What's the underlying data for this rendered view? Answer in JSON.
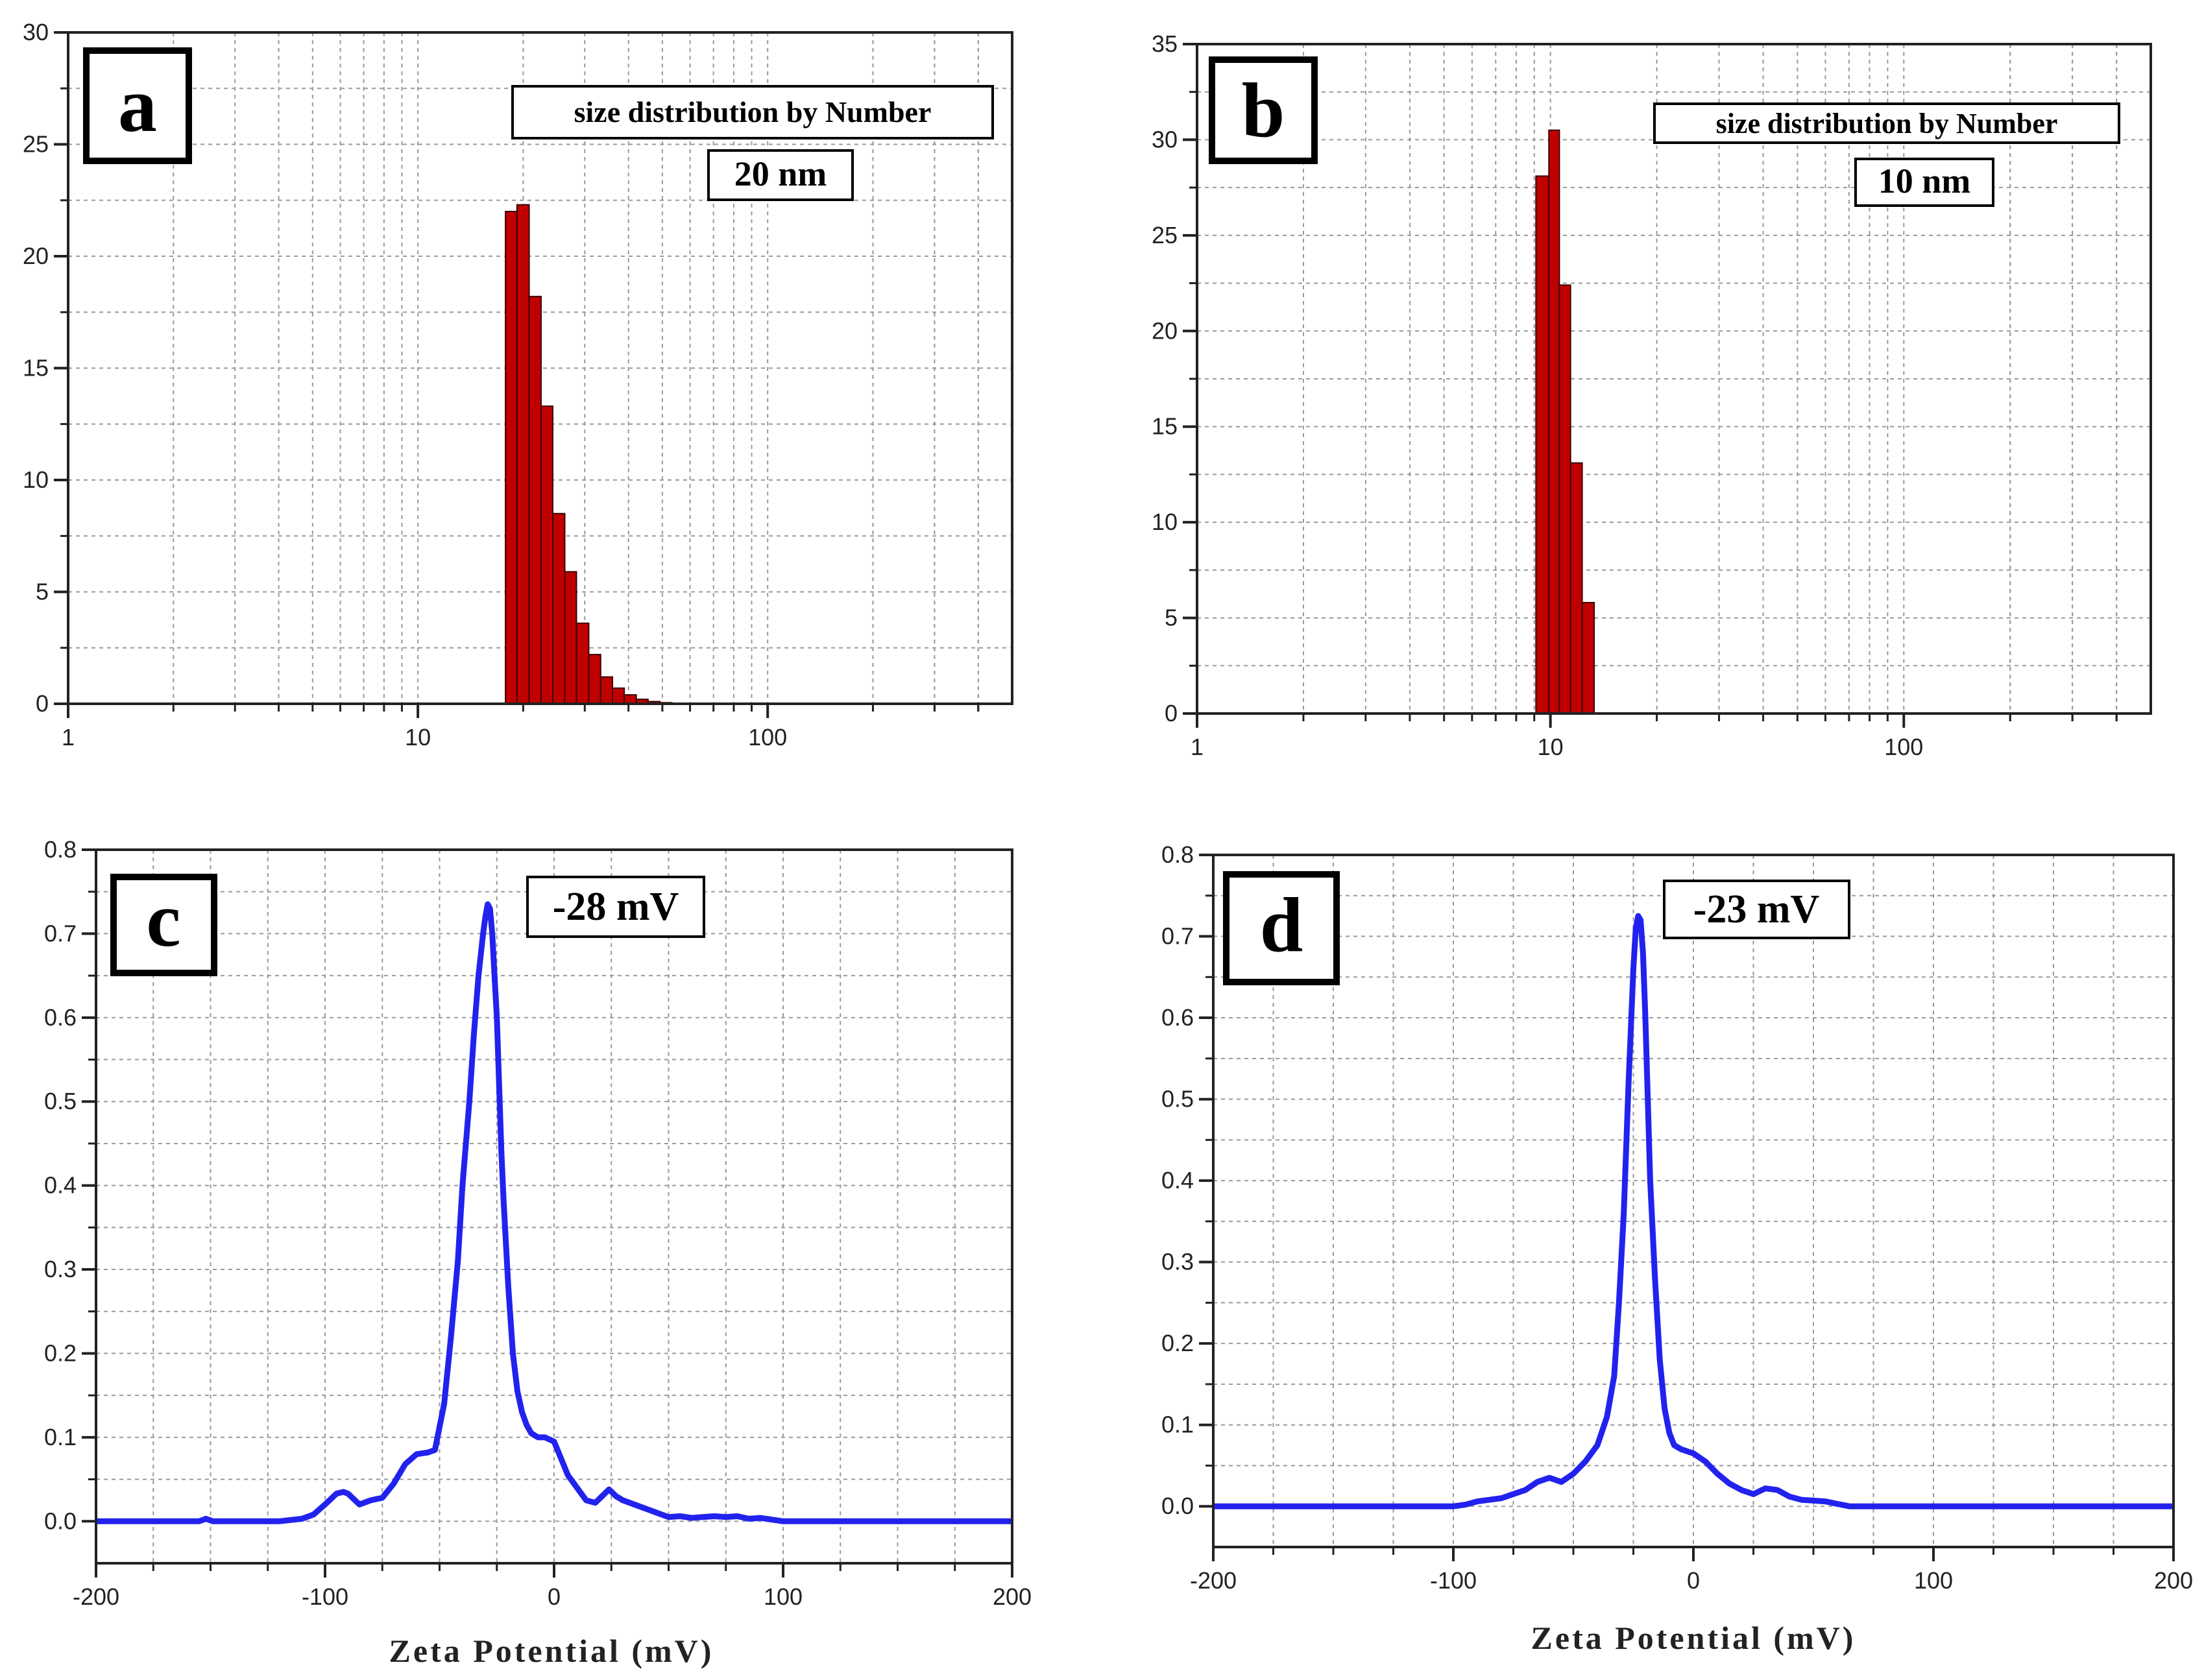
{
  "colors": {
    "bar": "#c00000",
    "bar_edge": "#3a0000",
    "line": "#2222ee",
    "grid": "#9a9a9a",
    "axis": "#222222"
  },
  "chart_data": [
    {
      "id": "a",
      "type": "bar",
      "panel_label": "a",
      "xscale": "log",
      "xlim": [
        1,
        500
      ],
      "ylim": [
        0,
        30
      ],
      "xticks": [
        {
          "value": 1,
          "label": "1"
        },
        {
          "value": 10,
          "label": "10"
        },
        {
          "value": 100,
          "label": "100"
        }
      ],
      "yticks": [
        {
          "value": 0,
          "label": "0"
        },
        {
          "value": 5,
          "label": "5"
        },
        {
          "value": 10,
          "label": "10"
        },
        {
          "value": 15,
          "label": "15"
        },
        {
          "value": 20,
          "label": "20"
        },
        {
          "value": 25,
          "label": "25"
        },
        {
          "value": 30,
          "label": "30"
        }
      ],
      "bin_edges": [
        17.8,
        19.2,
        20.8,
        22.5,
        24.3,
        26.3,
        28.4,
        30.8,
        33.3,
        36.0,
        38.9,
        42.1,
        45.5,
        49.2,
        53.2
      ],
      "values": [
        22.0,
        22.3,
        18.2,
        13.3,
        8.5,
        5.9,
        3.6,
        2.2,
        1.2,
        0.7,
        0.4,
        0.2,
        0.1,
        0.05
      ],
      "annotations": [
        "size distribution by Number",
        "20 nm"
      ],
      "xlabel": "",
      "ylabel": ""
    },
    {
      "id": "b",
      "type": "bar",
      "panel_label": "b",
      "xscale": "log",
      "xlim": [
        1,
        500
      ],
      "ylim": [
        0,
        35
      ],
      "xticks": [
        {
          "value": 1,
          "label": "1"
        },
        {
          "value": 10,
          "label": "10"
        },
        {
          "value": 100,
          "label": "100"
        }
      ],
      "yticks": [
        {
          "value": 0,
          "label": "0"
        },
        {
          "value": 5,
          "label": "5"
        },
        {
          "value": 10,
          "label": "10"
        },
        {
          "value": 15,
          "label": "15"
        },
        {
          "value": 20,
          "label": "20"
        },
        {
          "value": 25,
          "label": "25"
        },
        {
          "value": 30,
          "label": "30"
        },
        {
          "value": 35,
          "label": "35"
        }
      ],
      "bin_edges": [
        9.1,
        9.9,
        10.6,
        11.4,
        12.3,
        13.3
      ],
      "values": [
        28.1,
        30.5,
        22.4,
        13.1,
        5.8
      ],
      "annotations": [
        "size distribution by Number",
        "10 nm"
      ],
      "xlabel": "",
      "ylabel": ""
    },
    {
      "id": "c",
      "type": "line",
      "panel_label": "c",
      "xlim": [
        -200,
        200
      ],
      "ylim": [
        -0.05,
        0.8
      ],
      "xticks": [
        {
          "value": -200,
          "label": "-200"
        },
        {
          "value": -100,
          "label": "-100"
        },
        {
          "value": 0,
          "label": "0"
        },
        {
          "value": 100,
          "label": "100"
        },
        {
          "value": 200,
          "label": "200"
        }
      ],
      "yticks": [
        {
          "value": 0.0,
          "label": "0.0"
        },
        {
          "value": 0.1,
          "label": "0.1"
        },
        {
          "value": 0.2,
          "label": "0.2"
        },
        {
          "value": 0.3,
          "label": "0.3"
        },
        {
          "value": 0.4,
          "label": "0.4"
        },
        {
          "value": 0.5,
          "label": "0.5"
        },
        {
          "value": 0.6,
          "label": "0.6"
        },
        {
          "value": 0.7,
          "label": "0.7"
        },
        {
          "value": 0.8,
          "label": "0.8"
        }
      ],
      "x": [
        -200,
        -155,
        -152,
        -149,
        -120,
        -110,
        -105,
        -100,
        -95,
        -92,
        -90,
        -85,
        -80,
        -75,
        -70,
        -65,
        -60,
        -55,
        -52,
        -48,
        -45,
        -42,
        -40,
        -37,
        -35,
        -33,
        -31,
        -30,
        -29,
        -28,
        -27,
        -26,
        -25,
        -24,
        -23,
        -22,
        -20,
        -18,
        -16,
        -14,
        -12,
        -10,
        -7,
        -4,
        0,
        3,
        6,
        10,
        14,
        18,
        21,
        24,
        27,
        30,
        35,
        40,
        45,
        50,
        55,
        60,
        65,
        70,
        75,
        80,
        85,
        90,
        100,
        150,
        200
      ],
      "y": [
        0.0,
        0.0,
        0.003,
        0.0,
        0.0,
        0.003,
        0.008,
        0.02,
        0.033,
        0.035,
        0.033,
        0.02,
        0.025,
        0.028,
        0.045,
        0.068,
        0.08,
        0.082,
        0.085,
        0.14,
        0.22,
        0.31,
        0.4,
        0.5,
        0.58,
        0.65,
        0.7,
        0.72,
        0.735,
        0.73,
        0.7,
        0.65,
        0.6,
        0.52,
        0.44,
        0.38,
        0.28,
        0.2,
        0.155,
        0.13,
        0.115,
        0.105,
        0.1,
        0.1,
        0.095,
        0.075,
        0.055,
        0.04,
        0.025,
        0.022,
        0.03,
        0.038,
        0.03,
        0.025,
        0.02,
        0.015,
        0.01,
        0.005,
        0.006,
        0.004,
        0.005,
        0.006,
        0.005,
        0.006,
        0.003,
        0.004,
        0.0,
        0.0,
        0.0
      ],
      "annotations": [
        "-28 mV"
      ],
      "xlabel": "Zeta Potential (mV)",
      "ylabel": ""
    },
    {
      "id": "d",
      "type": "line",
      "panel_label": "d",
      "xlim": [
        -200,
        200
      ],
      "ylim": [
        -0.05,
        0.8
      ],
      "xticks": [
        {
          "value": -200,
          "label": "-200"
        },
        {
          "value": -100,
          "label": "-100"
        },
        {
          "value": 0,
          "label": "0"
        },
        {
          "value": 100,
          "label": "100"
        },
        {
          "value": 200,
          "label": "200"
        }
      ],
      "yticks": [
        {
          "value": 0.0,
          "label": "0.0"
        },
        {
          "value": 0.1,
          "label": "0.1"
        },
        {
          "value": 0.2,
          "label": "0.2"
        },
        {
          "value": 0.3,
          "label": "0.3"
        },
        {
          "value": 0.4,
          "label": "0.4"
        },
        {
          "value": 0.5,
          "label": "0.5"
        },
        {
          "value": 0.6,
          "label": "0.6"
        },
        {
          "value": 0.7,
          "label": "0.7"
        },
        {
          "value": 0.8,
          "label": "0.8"
        }
      ],
      "x": [
        -200,
        -100,
        -95,
        -90,
        -85,
        -80,
        -75,
        -70,
        -65,
        -60,
        -55,
        -50,
        -45,
        -40,
        -36,
        -33,
        -31,
        -29,
        -27,
        -25,
        -24,
        -23,
        -22,
        -21,
        -20,
        -19,
        -18,
        -16,
        -14,
        -12,
        -10,
        -8,
        -5,
        0,
        5,
        10,
        15,
        20,
        25,
        30,
        35,
        40,
        45,
        50,
        55,
        60,
        65,
        100,
        150,
        200
      ],
      "y": [
        0.0,
        0.0,
        0.002,
        0.006,
        0.008,
        0.01,
        0.015,
        0.02,
        0.03,
        0.035,
        0.03,
        0.04,
        0.055,
        0.075,
        0.11,
        0.16,
        0.25,
        0.36,
        0.52,
        0.66,
        0.71,
        0.725,
        0.72,
        0.68,
        0.6,
        0.5,
        0.4,
        0.28,
        0.18,
        0.12,
        0.09,
        0.075,
        0.07,
        0.065,
        0.055,
        0.04,
        0.028,
        0.02,
        0.015,
        0.022,
        0.02,
        0.012,
        0.008,
        0.007,
        0.006,
        0.003,
        0.0,
        0.0,
        0.0,
        0.0
      ],
      "annotations": [
        "-23 mV"
      ],
      "xlabel": "Zeta Potential (mV)",
      "ylabel": ""
    }
  ]
}
